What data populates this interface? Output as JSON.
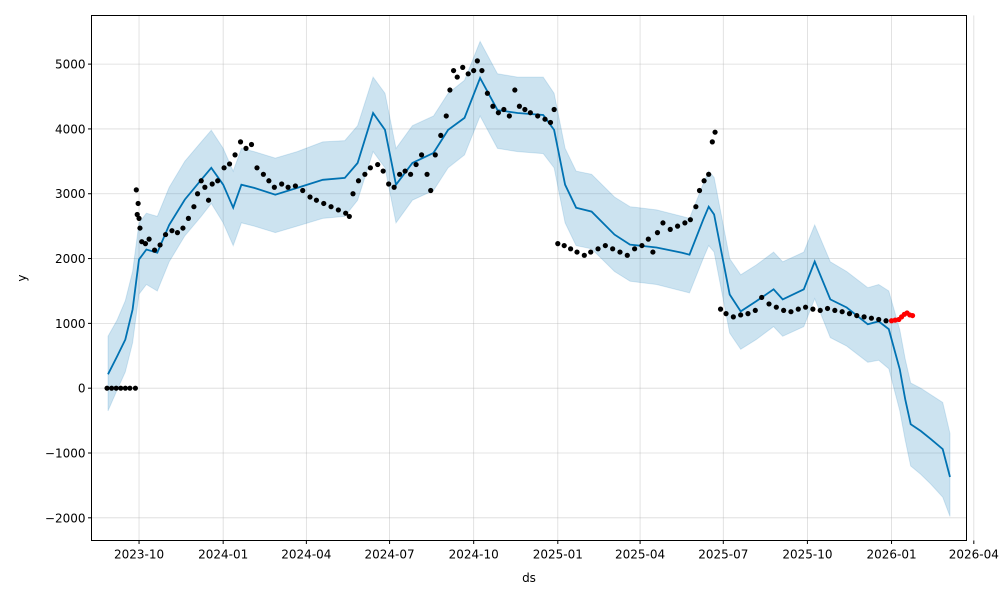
{
  "chart_data": {
    "type": "line",
    "title": "",
    "xlabel": "ds",
    "ylabel": "y",
    "ylim": [
      -2350,
      5750
    ],
    "xlim": [
      "2023-08-10",
      "2026-03-24"
    ],
    "grid": true,
    "colors": {
      "forecast": "#0072B2",
      "interval": "#0072B2",
      "observed": "#000000",
      "recent": "#ff0000"
    },
    "y_ticks": [
      -2000,
      -1000,
      0,
      1000,
      2000,
      3000,
      4000,
      5000
    ],
    "y_tick_labels": [
      "−2000",
      "−1000",
      "0",
      "1000",
      "2000",
      "3000",
      "4000",
      "5000"
    ],
    "x_ticks": [
      "2023-10-01",
      "2024-01-01",
      "2024-04-01",
      "2024-07-01",
      "2024-10-01",
      "2025-01-01",
      "2025-04-01",
      "2025-07-01",
      "2025-10-01",
      "2026-01-01",
      "2026-04-01"
    ],
    "x_tick_labels": [
      "2023-10",
      "2024-01",
      "2024-04",
      "2024-07",
      "2024-10",
      "2025-01",
      "2025-04",
      "2025-07",
      "2025-10",
      "2026-01",
      "2026-04"
    ],
    "forecast": [
      [
        "2023-08-28",
        215,
        -350,
        800
      ],
      [
        "2023-09-07",
        490,
        -30,
        1050
      ],
      [
        "2023-09-16",
        750,
        250,
        1350
      ],
      [
        "2023-09-24",
        1215,
        700,
        1800
      ],
      [
        "2023-10-01",
        1985,
        1450,
        2550
      ],
      [
        "2023-10-09",
        2140,
        1600,
        2700
      ],
      [
        "2023-10-21",
        2090,
        1500,
        2650
      ],
      [
        "2023-11-03",
        2520,
        1950,
        3100
      ],
      [
        "2023-11-20",
        2910,
        2350,
        3500
      ],
      [
        "2023-12-08",
        3215,
        2650,
        3800
      ],
      [
        "2023-12-19",
        3400,
        2850,
        3980
      ],
      [
        "2024-01-01",
        3140,
        2550,
        3700
      ],
      [
        "2024-01-12",
        2785,
        2200,
        3350
      ],
      [
        "2024-01-21",
        3140,
        2550,
        3700
      ],
      [
        "2024-02-04",
        3090,
        2500,
        3650
      ],
      [
        "2024-02-27",
        2985,
        2400,
        3550
      ],
      [
        "2024-03-22",
        3090,
        2500,
        3650
      ],
      [
        "2024-04-19",
        3215,
        2620,
        3800
      ],
      [
        "2024-05-13",
        3245,
        2650,
        3820
      ],
      [
        "2024-05-27",
        3475,
        2900,
        4050
      ],
      [
        "2024-06-13",
        4245,
        3650,
        4800
      ],
      [
        "2024-06-26",
        3985,
        3400,
        4550
      ],
      [
        "2024-07-08",
        3140,
        2550,
        3700
      ],
      [
        "2024-07-26",
        3475,
        2900,
        4050
      ],
      [
        "2024-08-18",
        3630,
        3050,
        4200
      ],
      [
        "2024-09-03",
        3985,
        3400,
        4550
      ],
      [
        "2024-09-21",
        4170,
        3600,
        4750
      ],
      [
        "2024-10-08",
        4785,
        4200,
        5350
      ],
      [
        "2024-10-27",
        4290,
        3700,
        4850
      ],
      [
        "2024-11-18",
        4245,
        3650,
        4800
      ],
      [
        "2024-12-16",
        4215,
        3620,
        4800
      ],
      [
        "2024-12-28",
        3985,
        3400,
        4550
      ],
      [
        "2025-01-09",
        3140,
        2550,
        3700
      ],
      [
        "2025-01-21",
        2785,
        2200,
        3350
      ],
      [
        "2025-02-07",
        2725,
        2150,
        3300
      ],
      [
        "2025-03-04",
        2370,
        1800,
        2950
      ],
      [
        "2025-03-21",
        2215,
        1650,
        2800
      ],
      [
        "2025-04-19",
        2170,
        1600,
        2750
      ],
      [
        "2025-05-17",
        2090,
        1500,
        2650
      ],
      [
        "2025-05-25",
        2060,
        1470,
        2620
      ],
      [
        "2025-06-09",
        2600,
        2000,
        3150
      ],
      [
        "2025-06-15",
        2800,
        2200,
        3350
      ],
      [
        "2025-06-21",
        2680,
        2100,
        3250
      ],
      [
        "2025-07-08",
        1445,
        850,
        2000
      ],
      [
        "2025-07-20",
        1185,
        600,
        1750
      ],
      [
        "2025-08-06",
        1340,
        750,
        1900
      ],
      [
        "2025-08-25",
        1525,
        950,
        2100
      ],
      [
        "2025-09-04",
        1370,
        800,
        1950
      ],
      [
        "2025-09-27",
        1525,
        950,
        2100
      ],
      [
        "2025-10-09",
        1955,
        1380,
        2520
      ],
      [
        "2025-10-26",
        1370,
        780,
        1950
      ],
      [
        "2025-11-13",
        1245,
        650,
        1800
      ],
      [
        "2025-12-06",
        985,
        400,
        1550
      ],
      [
        "2025-12-18",
        1030,
        430,
        1600
      ],
      [
        "2025-12-29",
        910,
        300,
        1500
      ],
      [
        "2026-01-10",
        290,
        -350,
        900
      ],
      [
        "2026-01-16",
        -170,
        -800,
        450
      ],
      [
        "2026-01-22",
        -555,
        -1200,
        80
      ],
      [
        "2026-02-02",
        -660,
        -1330,
        0
      ],
      [
        "2026-02-13",
        -785,
        -1480,
        -100
      ],
      [
        "2026-02-26",
        -940,
        -1680,
        -220
      ],
      [
        "2026-03-06",
        -1370,
        -1980,
        -700
      ]
    ],
    "observed": [
      [
        "2023-08-27",
        0
      ],
      [
        "2023-09-01",
        0
      ],
      [
        "2023-09-06",
        0
      ],
      [
        "2023-09-11",
        0
      ],
      [
        "2023-09-16",
        0
      ],
      [
        "2023-09-21",
        0
      ],
      [
        "2023-09-27",
        0
      ],
      [
        "2023-09-28",
        3060
      ],
      [
        "2023-09-29",
        2680
      ],
      [
        "2023-09-30",
        2850
      ],
      [
        "2023-10-01",
        2620
      ],
      [
        "2023-10-02",
        2470
      ],
      [
        "2023-10-04",
        2260
      ],
      [
        "2023-10-08",
        2230
      ],
      [
        "2023-10-12",
        2300
      ],
      [
        "2023-10-18",
        2130
      ],
      [
        "2023-10-24",
        2210
      ],
      [
        "2023-10-30",
        2370
      ],
      [
        "2023-11-06",
        2430
      ],
      [
        "2023-11-12",
        2400
      ],
      [
        "2023-11-18",
        2470
      ],
      [
        "2023-11-24",
        2620
      ],
      [
        "2023-11-30",
        2800
      ],
      [
        "2023-12-04",
        3000
      ],
      [
        "2023-12-08",
        3200
      ],
      [
        "2023-12-12",
        3100
      ],
      [
        "2023-12-16",
        2900
      ],
      [
        "2023-12-20",
        3150
      ],
      [
        "2023-12-26",
        3200
      ],
      [
        "2024-01-02",
        3400
      ],
      [
        "2024-01-08",
        3460
      ],
      [
        "2024-01-14",
        3600
      ],
      [
        "2024-01-20",
        3800
      ],
      [
        "2024-01-26",
        3700
      ],
      [
        "2024-02-01",
        3760
      ],
      [
        "2024-02-07",
        3400
      ],
      [
        "2024-02-14",
        3300
      ],
      [
        "2024-02-20",
        3200
      ],
      [
        "2024-02-26",
        3100
      ],
      [
        "2024-03-05",
        3150
      ],
      [
        "2024-03-12",
        3100
      ],
      [
        "2024-03-20",
        3120
      ],
      [
        "2024-03-28",
        3050
      ],
      [
        "2024-04-05",
        2950
      ],
      [
        "2024-04-12",
        2900
      ],
      [
        "2024-04-20",
        2850
      ],
      [
        "2024-04-28",
        2800
      ],
      [
        "2024-05-06",
        2750
      ],
      [
        "2024-05-14",
        2700
      ],
      [
        "2024-05-18",
        2650
      ],
      [
        "2024-05-22",
        3000
      ],
      [
        "2024-05-28",
        3200
      ],
      [
        "2024-06-04",
        3300
      ],
      [
        "2024-06-10",
        3400
      ],
      [
        "2024-06-18",
        3450
      ],
      [
        "2024-06-24",
        3350
      ],
      [
        "2024-06-30",
        3150
      ],
      [
        "2024-07-06",
        3100
      ],
      [
        "2024-07-12",
        3300
      ],
      [
        "2024-07-18",
        3350
      ],
      [
        "2024-07-24",
        3300
      ],
      [
        "2024-07-30",
        3450
      ],
      [
        "2024-08-05",
        3600
      ],
      [
        "2024-08-11",
        3300
      ],
      [
        "2024-08-15",
        3050
      ],
      [
        "2024-08-20",
        3600
      ],
      [
        "2024-08-26",
        3900
      ],
      [
        "2024-09-01",
        4200
      ],
      [
        "2024-09-05",
        4600
      ],
      [
        "2024-09-09",
        4900
      ],
      [
        "2024-09-13",
        4800
      ],
      [
        "2024-09-19",
        4950
      ],
      [
        "2024-09-25",
        4850
      ],
      [
        "2024-10-01",
        4900
      ],
      [
        "2024-10-05",
        5050
      ],
      [
        "2024-10-10",
        4900
      ],
      [
        "2024-10-16",
        4550
      ],
      [
        "2024-10-22",
        4350
      ],
      [
        "2024-10-28",
        4250
      ],
      [
        "2024-11-03",
        4300
      ],
      [
        "2024-11-09",
        4200
      ],
      [
        "2024-11-15",
        4600
      ],
      [
        "2024-11-20",
        4350
      ],
      [
        "2024-11-26",
        4300
      ],
      [
        "2024-12-02",
        4250
      ],
      [
        "2024-12-10",
        4200
      ],
      [
        "2024-12-18",
        4150
      ],
      [
        "2024-12-24",
        4100
      ],
      [
        "2024-12-28",
        4300
      ],
      [
        "2025-01-01",
        2230
      ],
      [
        "2025-01-08",
        2200
      ],
      [
        "2025-01-15",
        2150
      ],
      [
        "2025-01-22",
        2100
      ],
      [
        "2025-01-30",
        2050
      ],
      [
        "2025-02-06",
        2100
      ],
      [
        "2025-02-14",
        2150
      ],
      [
        "2025-02-22",
        2200
      ],
      [
        "2025-03-02",
        2150
      ],
      [
        "2025-03-10",
        2100
      ],
      [
        "2025-03-18",
        2050
      ],
      [
        "2025-03-26",
        2150
      ],
      [
        "2025-04-03",
        2200
      ],
      [
        "2025-04-10",
        2300
      ],
      [
        "2025-04-15",
        2100
      ],
      [
        "2025-04-20",
        2400
      ],
      [
        "2025-04-26",
        2550
      ],
      [
        "2025-05-04",
        2450
      ],
      [
        "2025-05-12",
        2500
      ],
      [
        "2025-05-20",
        2550
      ],
      [
        "2025-05-26",
        2600
      ],
      [
        "2025-06-01",
        2800
      ],
      [
        "2025-06-05",
        3050
      ],
      [
        "2025-06-10",
        3200
      ],
      [
        "2025-06-15",
        3300
      ],
      [
        "2025-06-19",
        3800
      ],
      [
        "2025-06-22",
        3950
      ],
      [
        "2025-06-28",
        1220
      ],
      [
        "2025-07-04",
        1150
      ],
      [
        "2025-07-12",
        1100
      ],
      [
        "2025-07-20",
        1130
      ],
      [
        "2025-07-28",
        1150
      ],
      [
        "2025-08-05",
        1200
      ],
      [
        "2025-08-12",
        1400
      ],
      [
        "2025-08-20",
        1300
      ],
      [
        "2025-08-28",
        1250
      ],
      [
        "2025-09-05",
        1200
      ],
      [
        "2025-09-13",
        1180
      ],
      [
        "2025-09-21",
        1220
      ],
      [
        "2025-09-29",
        1250
      ],
      [
        "2025-10-07",
        1220
      ],
      [
        "2025-10-15",
        1200
      ],
      [
        "2025-10-23",
        1230
      ],
      [
        "2025-10-31",
        1200
      ],
      [
        "2025-11-08",
        1180
      ],
      [
        "2025-11-16",
        1150
      ],
      [
        "2025-11-24",
        1120
      ],
      [
        "2025-12-02",
        1100
      ],
      [
        "2025-12-10",
        1080
      ],
      [
        "2025-12-18",
        1060
      ],
      [
        "2025-12-26",
        1040
      ]
    ],
    "recent": [
      [
        "2026-01-01",
        1040
      ],
      [
        "2026-01-05",
        1050
      ],
      [
        "2026-01-09",
        1060
      ],
      [
        "2026-01-12",
        1100
      ],
      [
        "2026-01-15",
        1140
      ],
      [
        "2026-01-18",
        1160
      ],
      [
        "2026-01-21",
        1130
      ],
      [
        "2026-01-24",
        1120
      ]
    ]
  }
}
